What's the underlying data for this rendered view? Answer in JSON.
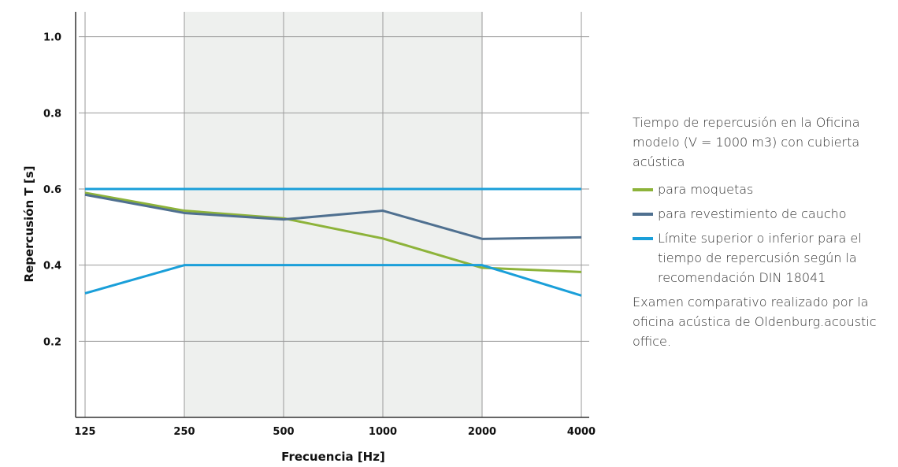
{
  "side_panel": {
    "title": "Tiempo de repercusión en la Oficina modelo (V = 1000 m3) con cubierta acústica",
    "note": "Examen comparativo realizado por la oficina acústica de Oldenburg.acoustic office."
  },
  "colors": {
    "moquetas": "#8db33a",
    "caucho": "#4f7090",
    "limite": "#1a9fd9",
    "shade": "#eef0ee",
    "grid": "#9a9a9a",
    "axis": "#333333"
  },
  "chart_data": {
    "type": "line",
    "xlabel": "Frecuencia [Hz]",
    "ylabel": "Repercusión T [s]",
    "x": [
      "125",
      "250",
      "500",
      "1000",
      "2000",
      "4000"
    ],
    "y_ticks": [
      "0.2",
      "0.4",
      "0.6",
      "0.8",
      "1.0"
    ],
    "ylim": [
      0.0,
      1.08
    ],
    "shaded_range": [
      "250",
      "2000"
    ],
    "grid": true,
    "legend_position": "right",
    "series": [
      {
        "name": "para moquetas",
        "color_key": "moquetas",
        "values": [
          0.59,
          0.543,
          0.523,
          0.47,
          0.393,
          0.382
        ]
      },
      {
        "name": "para revestimiento de caucho",
        "color_key": "caucho",
        "values": [
          0.585,
          0.537,
          0.52,
          0.543,
          0.469,
          0.473
        ]
      },
      {
        "name": "Límite superior o inferior para el tiempo de repercusión según la recomendación DIN 18041",
        "color_key": "limite",
        "values": [
          0.6,
          0.6,
          0.6,
          0.6,
          0.6,
          0.6
        ]
      },
      {
        "name": "",
        "color_key": "limite",
        "values": [
          0.326,
          0.4,
          0.4,
          0.4,
          0.4,
          0.32
        ]
      }
    ]
  }
}
